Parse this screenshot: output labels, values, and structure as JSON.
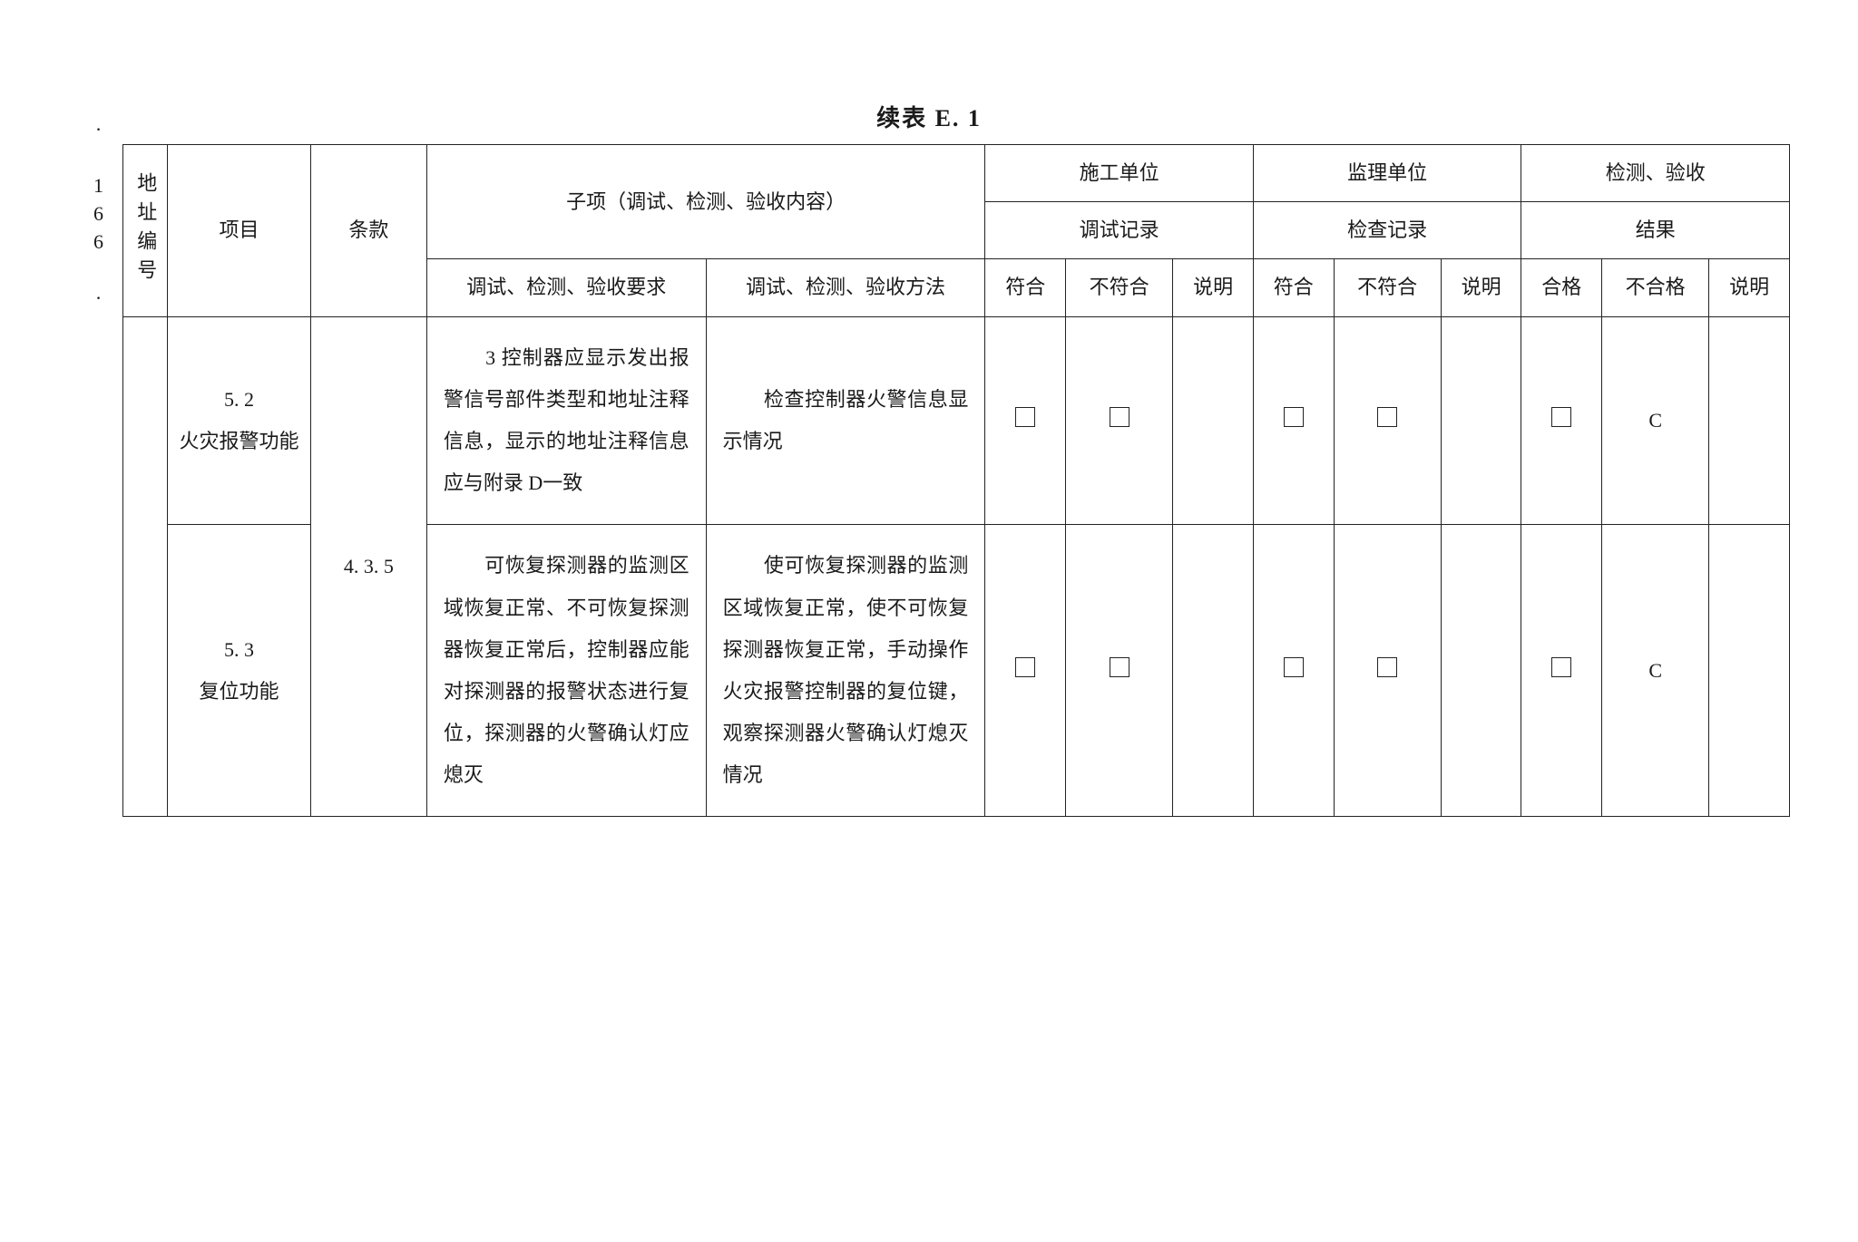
{
  "page_number_vert": "· 166 ·",
  "table_title": "续表 E. 1",
  "header": {
    "addr_no": "地址编号",
    "project": "项目",
    "clause": "条款",
    "subitem": "子项（调试、检测、验收内容）",
    "sub_req": "调试、检测、验收要求",
    "sub_method": "调试、检测、验收方法",
    "construction_unit": "施工单位",
    "commissioning_record": "调试记录",
    "supervision_unit": "监理单位",
    "inspection_record": "检查记录",
    "test_accept": "检测、验收",
    "result": "结果",
    "ok": "符合",
    "ng": "不符合",
    "note": "说明",
    "pass": "合格",
    "fail": "不合格"
  },
  "rows": [
    {
      "project_no": "5. 2",
      "project_name": "火灾报警功能",
      "clause": "4. 3. 5",
      "requirement": "　　3 控制器应显示发出报警信号部件类型和地址注释信息，显示的地址注释信息应与附录 D一致",
      "method": "　　检查控制器火警信息显示情况",
      "fail_grade": "C"
    },
    {
      "project_no": "5. 3",
      "project_name": "复位功能",
      "requirement": "　　可恢复探测器的监测区域恢复正常、不可恢复探测器恢复正常后，控制器应能对探测器的报警状态进行复位，探测器的火警确认灯应熄灭",
      "method": "　　使可恢复探测器的监测区域恢复正常，使不可恢复探测器恢复正常，手动操作火灾报警控制器的复位键，观察探测器火警确认灯熄灭情况",
      "fail_grade": "C"
    }
  ],
  "colors": {
    "text": "#1a1a1a",
    "border": "#222222",
    "background": "#ffffff"
  },
  "typography": {
    "body_fontsize_pt": 16,
    "title_fontsize_pt": 19,
    "line_height": 2.1,
    "font_family": "SimSun / Songti"
  }
}
